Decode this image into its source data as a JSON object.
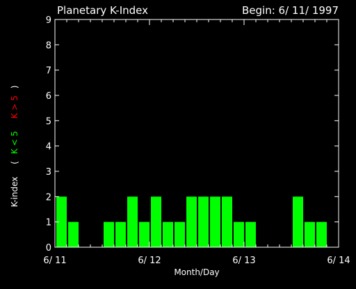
{
  "chart_data": {
    "type": "bar",
    "title": "Planetary K-Index",
    "subtitle": "Begin: 6/ 11/ 1997",
    "xlabel": "Month/Day",
    "ylabel_parts": [
      "K-index",
      "(",
      "K < 5",
      "K > 5",
      ")"
    ],
    "ylim": [
      0,
      9
    ],
    "y_ticks": [
      "0",
      "1",
      "2",
      "3",
      "4",
      "5",
      "6",
      "7",
      "8",
      "9"
    ],
    "x_tick_labels": [
      "6/ 11",
      "6/ 12",
      "6/ 13",
      "6/ 14"
    ],
    "bar_interval_hours": 3,
    "values": [
      2,
      1,
      0,
      0,
      1,
      1,
      2,
      1,
      2,
      1,
      1,
      2,
      2,
      2,
      2,
      1,
      1,
      0,
      0,
      0,
      2,
      1,
      1,
      0
    ],
    "colors": {
      "low": "#00ff00",
      "high": "#ff0000",
      "axis": "#ffffff"
    },
    "threshold": 5
  }
}
